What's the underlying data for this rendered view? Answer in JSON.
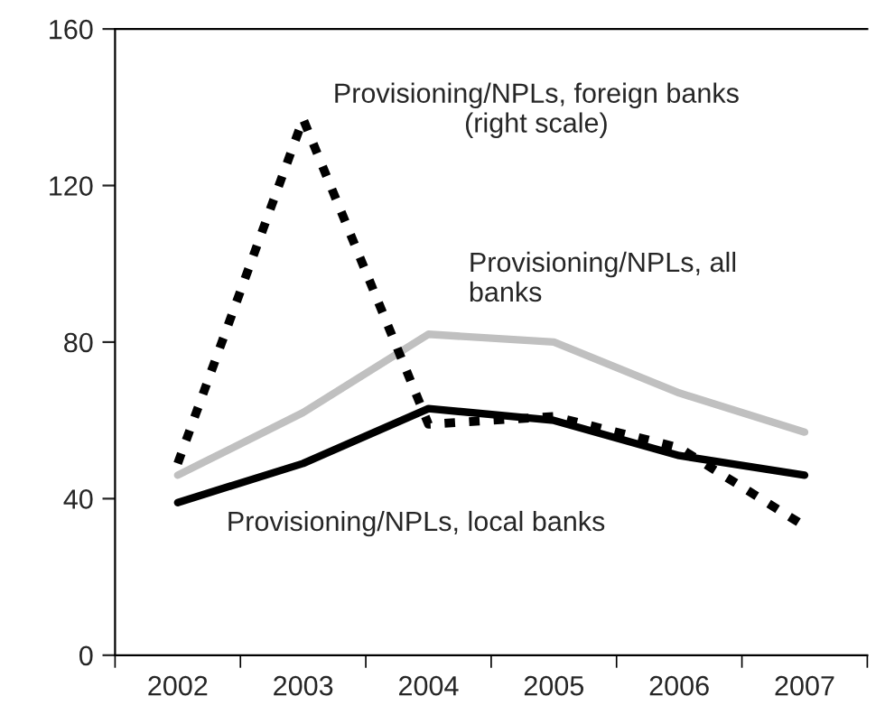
{
  "chart_data": {
    "type": "line",
    "categories": [
      "2002",
      "2003",
      "2004",
      "2005",
      "2006",
      "2007"
    ],
    "series": [
      {
        "name": "Provisioning/NPLs, all\nbanks",
        "color": "#c0c0c0",
        "values": [
          46,
          62,
          82,
          80,
          67,
          57
        ],
        "line_style": "solid"
      },
      {
        "name": "Provisioning/NPLs, local banks",
        "color": "#000000",
        "values": [
          39,
          49,
          63,
          60,
          51,
          46
        ],
        "line_style": "solid"
      },
      {
        "name": "Provisioning/NPLs, foreign banks\n(right scale)",
        "color": "#000000",
        "values": [
          49,
          137,
          59,
          61,
          53,
          33
        ],
        "line_style": "dashed"
      }
    ],
    "ylim": [
      0,
      160
    ],
    "yticks": [
      0,
      40,
      80,
      120,
      160
    ],
    "grid": false,
    "legend": false
  }
}
